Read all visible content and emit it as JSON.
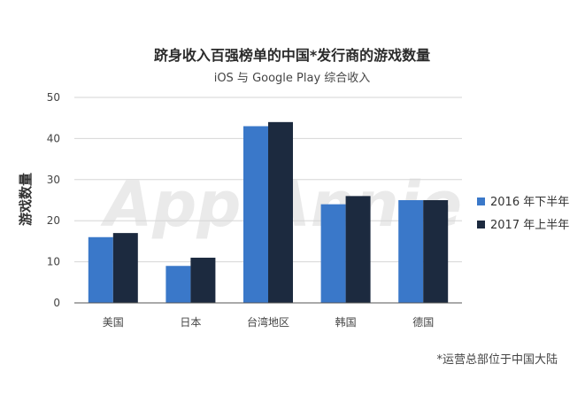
{
  "chart_data": {
    "type": "bar",
    "title": "跻身收入百强榜单的中国*发行商的游戏数量",
    "subtitle": "iOS 与 Google Play 综合收入",
    "ylabel": "游戏数量",
    "xlabel": "",
    "categories": [
      "美国",
      "日本",
      "台湾地区",
      "韩国",
      "德国"
    ],
    "series": [
      {
        "name": "2016 年下半年",
        "values": [
          16,
          9,
          43,
          24,
          25
        ],
        "color": "#3a78c9"
      },
      {
        "name": "2017 年上半年",
        "values": [
          17,
          11,
          44,
          26,
          25
        ],
        "color": "#1c2a3f"
      }
    ],
    "ylim": [
      0,
      50
    ],
    "yticks": [
      0,
      10,
      20,
      30,
      40,
      50
    ],
    "grid": true,
    "legend": "right",
    "watermark": "App Annie",
    "footnote": "*运营总部位于中国大陆"
  }
}
